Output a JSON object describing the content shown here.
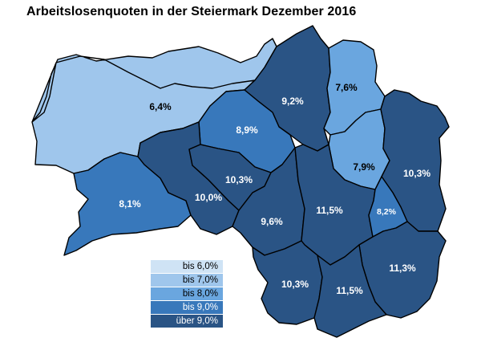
{
  "title": "Arbeitslosenquoten in der Steiermark Dezember 2016",
  "colors": {
    "c1": "#cfe3f5",
    "c2": "#9fc6ec",
    "c3": "#6aa6df",
    "c4": "#3878bb",
    "c5": "#2a5485",
    "dark_text": "#000000",
    "light_text": "#ffffff"
  },
  "regions": [
    {
      "value": "6,4%",
      "cls": 2
    },
    {
      "value": "9,2%",
      "cls": 5
    },
    {
      "value": "7,6%",
      "cls": 3
    },
    {
      "value": "8,9%",
      "cls": 4
    },
    {
      "value": "7,9%",
      "cls": 3
    },
    {
      "value": "10,3%",
      "cls": 5
    },
    {
      "value": "8,1%",
      "cls": 4
    },
    {
      "value": "10,0%",
      "cls": 5
    },
    {
      "value": "10,3%",
      "cls": 5
    },
    {
      "value": "9,6%",
      "cls": 5
    },
    {
      "value": "11,5%",
      "cls": 5
    },
    {
      "value": "8,2%",
      "cls": 4
    },
    {
      "value": "11,3%",
      "cls": 5
    },
    {
      "value": "10,3%",
      "cls": 5
    },
    {
      "value": "11,5%",
      "cls": 5
    }
  ],
  "legend": [
    {
      "label": "bis 6,0%",
      "color": "#cfe3f5",
      "text": "#000000"
    },
    {
      "label": "bis 7,0%",
      "color": "#9fc6ec",
      "text": "#000000"
    },
    {
      "label": "bis 8,0%",
      "color": "#6aa6df",
      "text": "#000000"
    },
    {
      "label": "bis 9,0%",
      "color": "#3878bb",
      "text": "#ffffff"
    },
    {
      "label": "über 9,0%",
      "color": "#2a5485",
      "text": "#ffffff"
    }
  ]
}
